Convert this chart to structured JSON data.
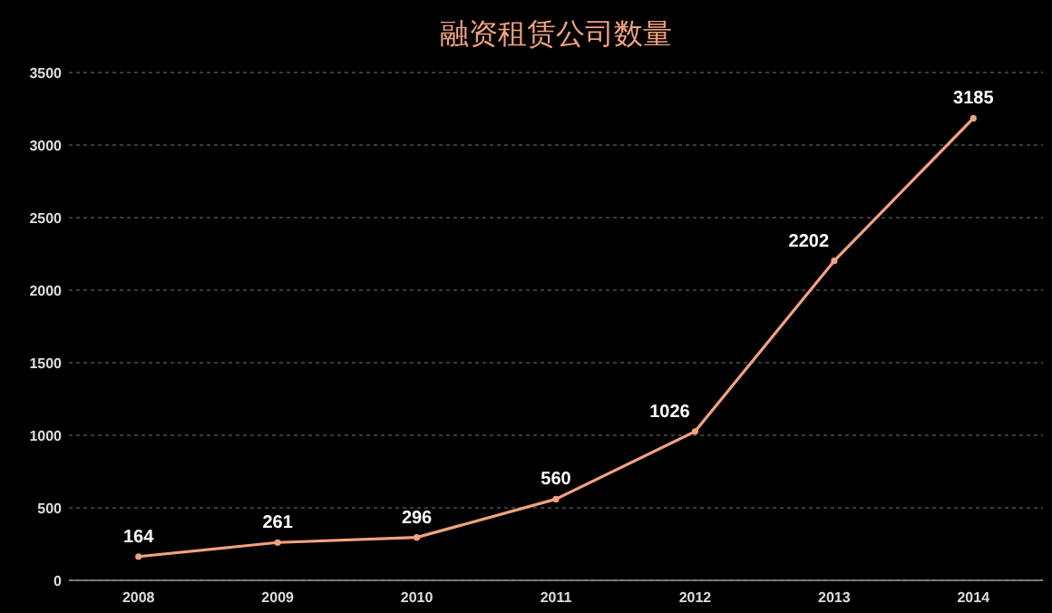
{
  "chart_data": {
    "type": "line",
    "title": "融资租赁公司数量",
    "categories": [
      "2008",
      "2009",
      "2010",
      "2011",
      "2012",
      "2013",
      "2014"
    ],
    "values": [
      164,
      261,
      296,
      560,
      1026,
      2202,
      3185
    ],
    "color": "#f2a27e",
    "ylim": [
      0,
      3500
    ],
    "yticks": [
      0,
      500,
      1000,
      1500,
      2000,
      2500,
      3000,
      3500
    ],
    "grid": "y",
    "marker": "circle",
    "data_labels": true
  }
}
